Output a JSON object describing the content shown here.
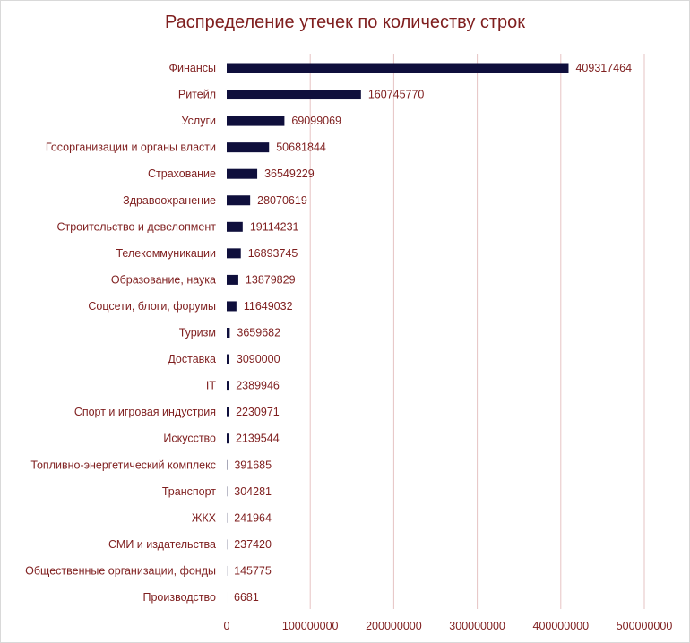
{
  "chart_data": {
    "type": "bar",
    "orientation": "horizontal",
    "title": "Распределение утечек по количеству строк",
    "xlabel": "",
    "ylabel": "",
    "xlim": [
      0,
      500000000
    ],
    "ticks": [
      "0",
      "100000000",
      "200000000",
      "300000000",
      "400000000",
      "500000000"
    ],
    "tick_values": [
      0,
      100000000,
      200000000,
      300000000,
      400000000,
      500000000
    ],
    "grid": true,
    "legend": "none",
    "bar_color": "#0f0f3c",
    "text_color": "#7f1f1f",
    "categories": [
      "Финансы",
      "Ритейл",
      "Услуги",
      "Госорганизации и органы власти",
      "Страхование",
      "Здравоохранение",
      "Строительство и девелопмент",
      "Телекоммуникации",
      "Образование, наука",
      "Соцсети, блоги, форумы",
      "Туризм",
      "Доставка",
      "IT",
      "Спорт и игровая индустрия",
      "Искусство",
      "Топливно-энергетический комплекс",
      "Транспорт",
      "ЖКХ",
      "СМИ и издательства",
      "Общественные организации, фонды",
      "Производство"
    ],
    "values": [
      409317464,
      160745770,
      69099069,
      50681844,
      36549229,
      28070619,
      19114231,
      16893745,
      13879829,
      11649032,
      3659682,
      3090000,
      2389946,
      2230971,
      2139544,
      391685,
      304281,
      241964,
      237420,
      145775,
      6681
    ],
    "value_labels": [
      "409317464",
      "160745770",
      "69099069",
      "50681844",
      "36549229",
      "28070619",
      "19114231",
      "16893745",
      "13879829",
      "11649032",
      "3659682",
      "3090000",
      "2389946",
      "2230971",
      "2139544",
      "391685",
      "304281",
      "241964",
      "237420",
      "145775",
      "6681"
    ]
  }
}
